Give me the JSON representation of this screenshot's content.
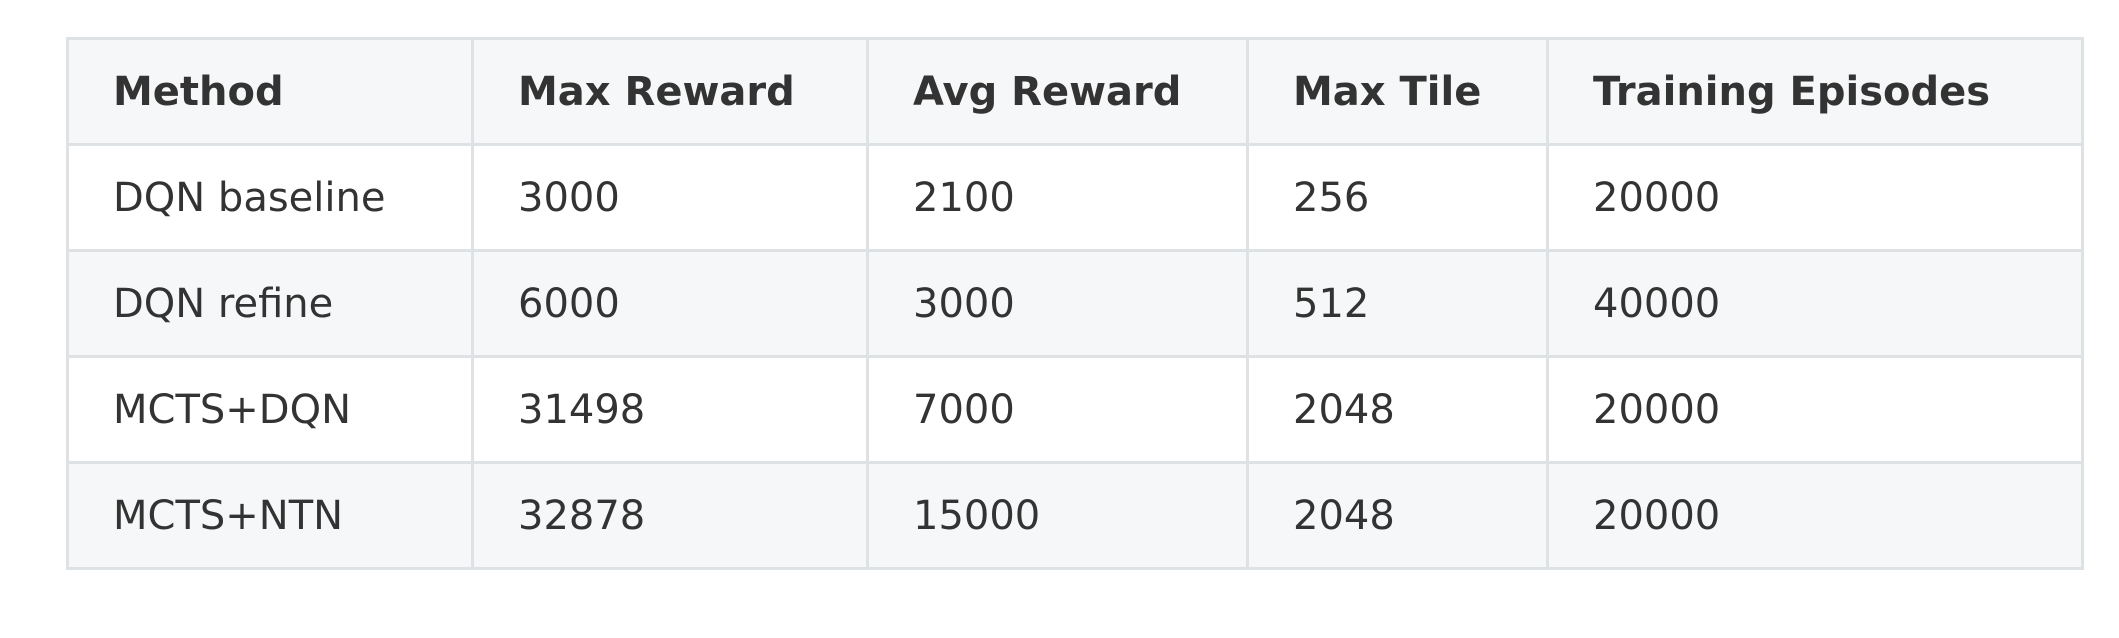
{
  "table": {
    "headers": [
      "Method",
      "Max Reward",
      "Avg Reward",
      "Max Tile",
      "Training Episodes"
    ],
    "rows": [
      [
        "DQN baseline",
        "3000",
        "2100",
        "256",
        "20000"
      ],
      [
        "DQN refine",
        "6000",
        "3000",
        "512",
        "40000"
      ],
      [
        "MCTS+DQN",
        "31498",
        "7000",
        "2048",
        "20000"
      ],
      [
        "MCTS+NTN",
        "32878",
        "15000",
        "2048",
        "20000"
      ]
    ]
  },
  "chart_data": {
    "type": "table",
    "columns": [
      "Method",
      "Max Reward",
      "Avg Reward",
      "Max Tile",
      "Training Episodes"
    ],
    "rows": [
      {
        "Method": "DQN baseline",
        "Max Reward": 3000,
        "Avg Reward": 2100,
        "Max Tile": 256,
        "Training Episodes": 20000
      },
      {
        "Method": "DQN refine",
        "Max Reward": 6000,
        "Avg Reward": 3000,
        "Max Tile": 512,
        "Training Episodes": 40000
      },
      {
        "Method": "MCTS+DQN",
        "Max Reward": 31498,
        "Avg Reward": 7000,
        "Max Tile": 2048,
        "Training Episodes": 20000
      },
      {
        "Method": "MCTS+NTN",
        "Max Reward": 32878,
        "Avg Reward": 15000,
        "Max Tile": 2048,
        "Training Episodes": 20000
      }
    ]
  }
}
